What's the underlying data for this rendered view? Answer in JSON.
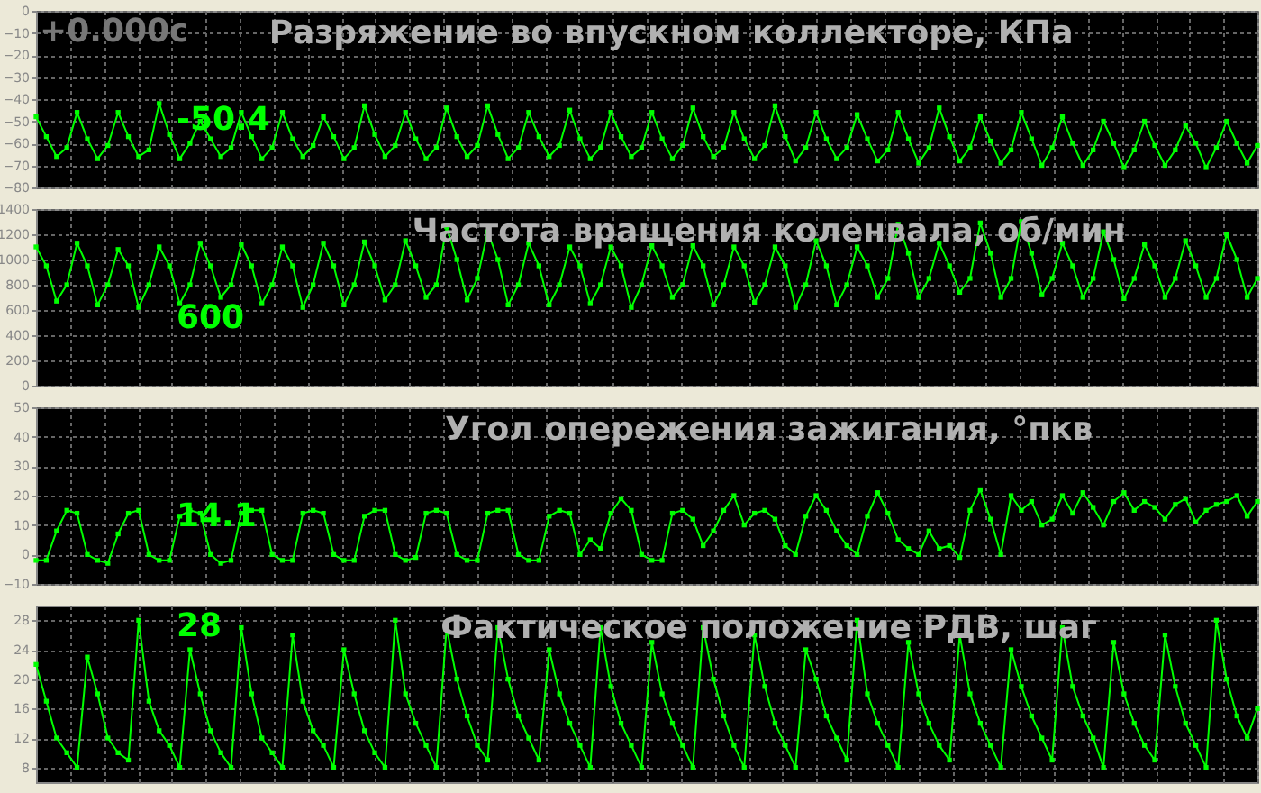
{
  "chart_data": [
    {
      "type": "line",
      "title": "Разряжение во впускном коллекторе, КПа",
      "categories": [
        null,
        null,
        null,
        null,
        null,
        null,
        null,
        null,
        null,
        null,
        null,
        null,
        null,
        null,
        null,
        null,
        null,
        null,
        null,
        null,
        null,
        null,
        null,
        null,
        null,
        null,
        null,
        null,
        null,
        null,
        null,
        null,
        null,
        null,
        null,
        null,
        null,
        null,
        null,
        null,
        null,
        null,
        null,
        null,
        null,
        null,
        null,
        null,
        null,
        null,
        null,
        null,
        null,
        null,
        null,
        null,
        null,
        null,
        null,
        null,
        null,
        null,
        null,
        null,
        null,
        null,
        null,
        null,
        null,
        null,
        null,
        null,
        null,
        null,
        null,
        null,
        null,
        null,
        null,
        null,
        null,
        null,
        null,
        null,
        null,
        null,
        null,
        null,
        null,
        null,
        null,
        null,
        null,
        null,
        null,
        null,
        null,
        null,
        null,
        null,
        null,
        null,
        null,
        null,
        null,
        null,
        null,
        null,
        null,
        null,
        null,
        null,
        null,
        null,
        null,
        null,
        null,
        null,
        null,
        null
      ],
      "ylim": [
        -80,
        0
      ],
      "yticks": [
        0,
        -10,
        -20,
        -30,
        -40,
        -50,
        -60,
        -70,
        -80
      ],
      "grid": true,
      "marker": "square",
      "line_style": "solid",
      "annotations": [
        "+0.000с",
        "-50.4"
      ],
      "series": [
        {
          "color": "#00ff00",
          "values": [
            -48,
            -57,
            -66,
            -62,
            -46,
            -58,
            -67,
            -61,
            -46,
            -57,
            -66,
            -63,
            -42,
            -56,
            -67,
            -60,
            -50,
            -58,
            -66,
            -62,
            -46,
            -57,
            -67,
            -62,
            -46,
            -58,
            -66,
            -61,
            -48,
            -57,
            -67,
            -62,
            -43,
            -56,
            -66,
            -61,
            -46,
            -58,
            -67,
            -62,
            -44,
            -57,
            -66,
            -61,
            -43,
            -56,
            -67,
            -62,
            -46,
            -57,
            -66,
            -61,
            -45,
            -58,
            -67,
            -62,
            -46,
            -57,
            -66,
            -62,
            -46,
            -58,
            -67,
            -61,
            -44,
            -57,
            -66,
            -62,
            -46,
            -58,
            -67,
            -61,
            -43,
            -57,
            -68,
            -62,
            -46,
            -58,
            -67,
            -62,
            -47,
            -58,
            -68,
            -63,
            -46,
            -58,
            -69,
            -62,
            -44,
            -57,
            -68,
            -62,
            -48,
            -59,
            -69,
            -63,
            -46,
            -58,
            -70,
            -62,
            -48,
            -60,
            -70,
            -63,
            -50,
            -60,
            -71,
            -63,
            -50,
            -61,
            -70,
            -63,
            -52,
            -60,
            -71,
            -62,
            -50,
            -60,
            -69,
            -61
          ]
        }
      ]
    },
    {
      "type": "line",
      "title": "Частота вращения коленвала, об/мин",
      "categories": [
        null,
        null,
        null,
        null,
        null,
        null,
        null,
        null,
        null,
        null,
        null,
        null,
        null,
        null,
        null,
        null,
        null,
        null,
        null,
        null,
        null,
        null,
        null,
        null,
        null,
        null,
        null,
        null,
        null,
        null,
        null,
        null,
        null,
        null,
        null,
        null,
        null,
        null,
        null,
        null,
        null,
        null,
        null,
        null,
        null,
        null,
        null,
        null,
        null,
        null,
        null,
        null,
        null,
        null,
        null,
        null,
        null,
        null,
        null,
        null,
        null,
        null,
        null,
        null,
        null,
        null,
        null,
        null,
        null,
        null,
        null,
        null,
        null,
        null,
        null,
        null,
        null,
        null,
        null,
        null,
        null,
        null,
        null,
        null,
        null,
        null,
        null,
        null,
        null,
        null,
        null,
        null,
        null,
        null,
        null,
        null,
        null,
        null,
        null,
        null,
        null,
        null,
        null,
        null,
        null,
        null,
        null,
        null,
        null,
        null,
        null,
        null,
        null,
        null,
        null,
        null,
        null,
        null,
        null,
        null
      ],
      "ylim": [
        0,
        1400
      ],
      "yticks": [
        0,
        200,
        400,
        600,
        800,
        1000,
        1200,
        1400
      ],
      "grid": true,
      "marker": "square",
      "line_style": "solid",
      "annotations": [
        "600"
      ],
      "series": [
        {
          "color": "#00ff00",
          "values": [
            1100,
            950,
            670,
            800,
            1130,
            950,
            640,
            800,
            1080,
            950,
            620,
            800,
            1100,
            950,
            650,
            800,
            1130,
            950,
            700,
            800,
            1120,
            950,
            650,
            800,
            1100,
            950,
            620,
            800,
            1130,
            950,
            640,
            800,
            1140,
            950,
            680,
            800,
            1150,
            950,
            700,
            800,
            1260,
            1000,
            680,
            850,
            1220,
            1000,
            640,
            800,
            1130,
            950,
            640,
            800,
            1100,
            950,
            650,
            800,
            1100,
            950,
            620,
            800,
            1110,
            950,
            700,
            800,
            1110,
            950,
            640,
            800,
            1100,
            950,
            660,
            800,
            1100,
            950,
            620,
            800,
            1150,
            950,
            640,
            800,
            1100,
            950,
            700,
            850,
            1280,
            1050,
            700,
            850,
            1130,
            950,
            740,
            850,
            1290,
            1050,
            700,
            850,
            1300,
            1050,
            720,
            850,
            1130,
            950,
            700,
            850,
            1220,
            1000,
            690,
            850,
            1120,
            950,
            700,
            850,
            1150,
            950,
            700,
            850,
            1200,
            1000,
            700,
            850
          ]
        }
      ]
    },
    {
      "type": "line",
      "title": "Угол опережения зажигания, °пкв",
      "categories": [
        null,
        null,
        null,
        null,
        null,
        null,
        null,
        null,
        null,
        null,
        null,
        null,
        null,
        null,
        null,
        null,
        null,
        null,
        null,
        null,
        null,
        null,
        null,
        null,
        null,
        null,
        null,
        null,
        null,
        null,
        null,
        null,
        null,
        null,
        null,
        null,
        null,
        null,
        null,
        null,
        null,
        null,
        null,
        null,
        null,
        null,
        null,
        null,
        null,
        null,
        null,
        null,
        null,
        null,
        null,
        null,
        null,
        null,
        null,
        null,
        null,
        null,
        null,
        null,
        null,
        null,
        null,
        null,
        null,
        null,
        null,
        null,
        null,
        null,
        null,
        null,
        null,
        null,
        null,
        null,
        null,
        null,
        null,
        null,
        null,
        null,
        null,
        null,
        null,
        null,
        null,
        null,
        null,
        null,
        null,
        null,
        null,
        null,
        null,
        null,
        null,
        null,
        null,
        null,
        null,
        null,
        null,
        null,
        null,
        null,
        null,
        null,
        null,
        null,
        null,
        null,
        null,
        null,
        null,
        null
      ],
      "ylim": [
        -10,
        50
      ],
      "yticks": [
        -10,
        0,
        10,
        20,
        30,
        40,
        50
      ],
      "grid": true,
      "marker": "square",
      "line_style": "solid",
      "annotations": [
        "14.1"
      ],
      "series": [
        {
          "color": "#00ff00",
          "values": [
            -2,
            -2,
            8,
            15,
            14,
            0,
            -2,
            -3,
            7,
            14,
            15,
            0,
            -2,
            -2,
            13,
            15,
            14,
            0,
            -3,
            -2,
            14,
            15,
            15,
            0,
            -2,
            -2,
            14,
            15,
            14,
            0,
            -2,
            -2,
            13,
            15,
            15,
            0,
            -2,
            -1,
            14,
            15,
            14,
            0,
            -2,
            -2,
            14,
            15,
            15,
            0,
            -2,
            -2,
            13,
            15,
            14,
            0,
            5,
            2,
            14,
            19,
            15,
            0,
            -2,
            -2,
            14,
            15,
            12,
            3,
            8,
            15,
            20,
            10,
            14,
            15,
            12,
            3,
            0,
            13,
            20,
            15,
            8,
            3,
            0,
            13,
            21,
            14,
            5,
            2,
            0,
            8,
            2,
            3,
            -1,
            15,
            22,
            12,
            0,
            20,
            15,
            18,
            10,
            12,
            20,
            14,
            21,
            16,
            10,
            18,
            21,
            15,
            18,
            16,
            12,
            17,
            19,
            11,
            15,
            17,
            18,
            20,
            13,
            18
          ]
        }
      ]
    },
    {
      "type": "line",
      "title": "Фактическое положение РДВ, шаг",
      "categories": [
        null,
        null,
        null,
        null,
        null,
        null,
        null,
        null,
        null,
        null,
        null,
        null,
        null,
        null,
        null,
        null,
        null,
        null,
        null,
        null,
        null,
        null,
        null,
        null,
        null,
        null,
        null,
        null,
        null,
        null,
        null,
        null,
        null,
        null,
        null,
        null,
        null,
        null,
        null,
        null,
        null,
        null,
        null,
        null,
        null,
        null,
        null,
        null,
        null,
        null,
        null,
        null,
        null,
        null,
        null,
        null,
        null,
        null,
        null,
        null,
        null,
        null,
        null,
        null,
        null,
        null,
        null,
        null,
        null,
        null,
        null,
        null,
        null,
        null,
        null,
        null,
        null,
        null,
        null,
        null,
        null,
        null,
        null,
        null,
        null,
        null,
        null,
        null,
        null,
        null,
        null,
        null,
        null,
        null,
        null,
        null,
        null,
        null,
        null,
        null,
        null,
        null,
        null,
        null,
        null,
        null,
        null,
        null,
        null,
        null,
        null,
        null,
        null,
        null,
        null,
        null,
        null,
        null,
        null,
        null
      ],
      "ylim": [
        6,
        30
      ],
      "yticks": [
        8,
        12,
        16,
        20,
        24,
        28
      ],
      "grid": true,
      "marker": "square",
      "line_style": "solid",
      "annotations": [
        "28"
      ],
      "series": [
        {
          "color": "#00ff00",
          "values": [
            22,
            17,
            12,
            10,
            8,
            23,
            18,
            12,
            10,
            9,
            28,
            17,
            13,
            11,
            8,
            24,
            18,
            13,
            10,
            8,
            27,
            18,
            12,
            10,
            8,
            26,
            17,
            13,
            11,
            8,
            24,
            18,
            13,
            10,
            8,
            28,
            18,
            14,
            11,
            8,
            27,
            20,
            15,
            11,
            9,
            27,
            20,
            15,
            12,
            9,
            24,
            18,
            14,
            11,
            8,
            27,
            19,
            14,
            11,
            8,
            25,
            18,
            14,
            11,
            8,
            27,
            20,
            15,
            11,
            8,
            26,
            19,
            14,
            11,
            8,
            24,
            20,
            15,
            12,
            9,
            28,
            18,
            14,
            11,
            8,
            25,
            18,
            14,
            11,
            9,
            26,
            18,
            14,
            11,
            8,
            24,
            19,
            15,
            12,
            9,
            27,
            19,
            15,
            12,
            8,
            25,
            18,
            14,
            11,
            9,
            26,
            19,
            14,
            11,
            8,
            28,
            20,
            15,
            12,
            16
          ]
        }
      ]
    }
  ]
}
